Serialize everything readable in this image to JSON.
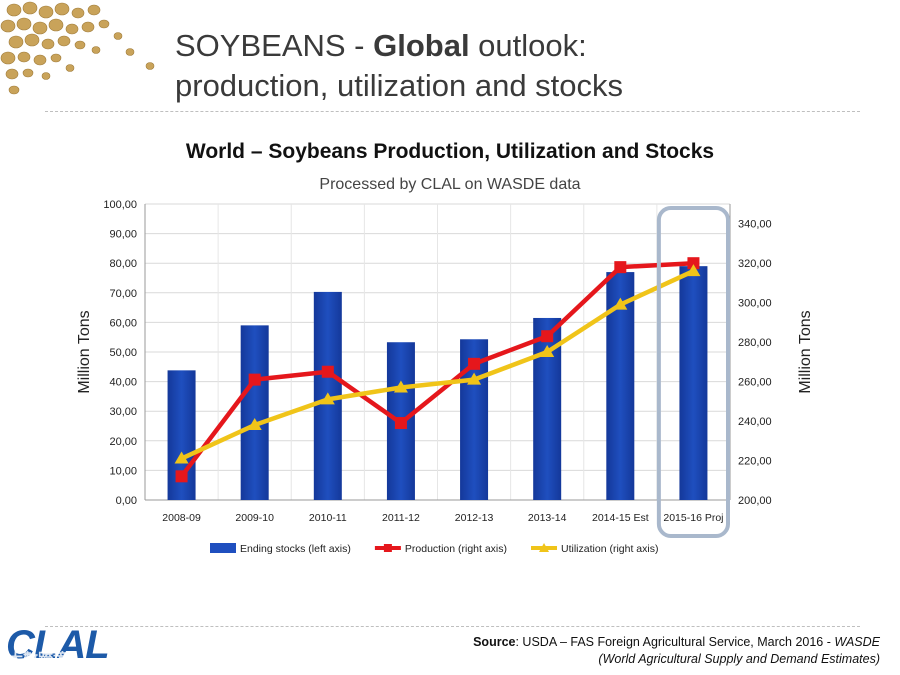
{
  "slide": {
    "title_prefix": "SOYBEANS - ",
    "title_bold": "Global",
    "title_suffix": " outlook:",
    "title_line2": "production, utilization and stocks",
    "source_label": "Source",
    "source_text": ": USDA – FAS Foreign Agricultural Service, March 2016 - ",
    "source_italic": "WASDE",
    "source_line2": "(World Agricultural Supply and Demand Estimates)",
    "logo_text": "CLAL",
    "watermark": "大數跨境"
  },
  "chart_data": {
    "type": "bar",
    "title": "World – Soybeans Production, Utilization and Stocks",
    "subtitle": "Processed by CLAL on WASDE data",
    "categories": [
      "2008-09",
      "2009-10",
      "2010-11",
      "2011-12",
      "2012-13",
      "2013-14",
      "2014-15 Est",
      "2015-16 Proj"
    ],
    "ylabel_left": "Million Tons",
    "ylabel_right": "Million Tons",
    "ylim_left": [
      0,
      100
    ],
    "ylim_right": [
      200,
      350
    ],
    "left_ticks": [
      "0,00",
      "10,00",
      "20,00",
      "30,00",
      "40,00",
      "50,00",
      "60,00",
      "70,00",
      "80,00",
      "90,00",
      "100,00"
    ],
    "right_ticks": [
      "200,00",
      "220,00",
      "240,00",
      "260,00",
      "280,00",
      "300,00",
      "320,00",
      "340,00"
    ],
    "grid": true,
    "legend_position": "bottom",
    "highlight_category": "2015-16 Proj",
    "series": [
      {
        "name": "Ending stocks (left axis)",
        "type": "bar",
        "axis": "left",
        "color": "#1f4fbf",
        "values": [
          43.8,
          59.0,
          70.3,
          53.3,
          54.3,
          61.5,
          77.0,
          79.0
        ]
      },
      {
        "name": "Production (right axis)",
        "type": "line",
        "axis": "right",
        "color": "#e5171c",
        "marker": "square",
        "values": [
          212,
          261,
          265,
          239,
          269,
          283,
          318,
          320
        ]
      },
      {
        "name": "Utilization (right axis)",
        "type": "line",
        "axis": "right",
        "color": "#f0c419",
        "marker": "triangle",
        "values": [
          221,
          238,
          251,
          257,
          261,
          275,
          299,
          316
        ]
      }
    ]
  }
}
